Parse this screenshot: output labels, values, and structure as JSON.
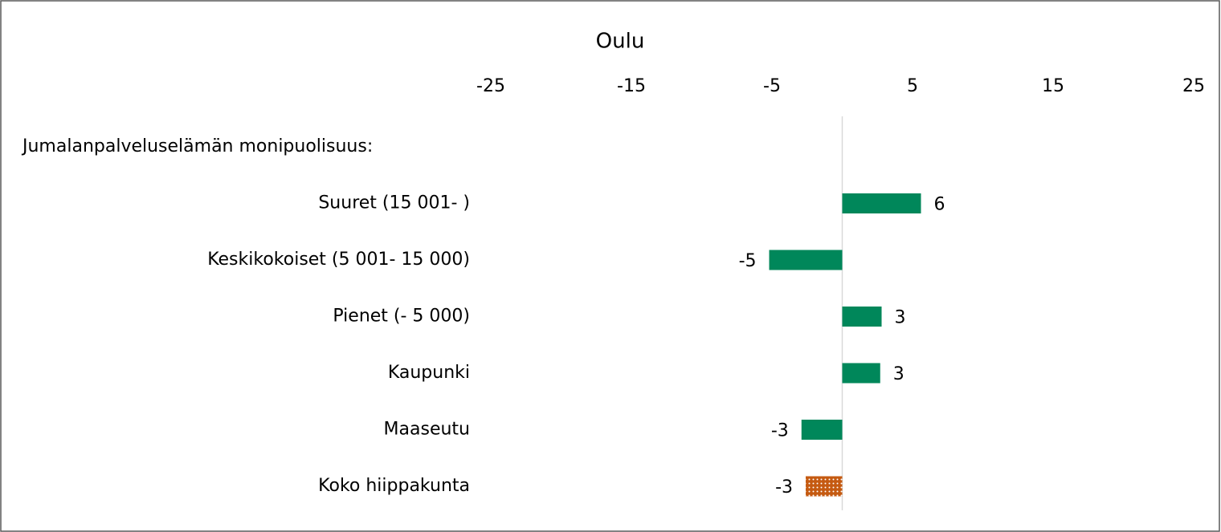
{
  "chart_data": {
    "type": "barh",
    "title": "Oulu",
    "categories": [
      "Jumalanpalveluselämän monipuolisuus:",
      "Suuret (15 001- )",
      "Keskikokoiset (5 001- 15 000)",
      "Pienet (- 5 000)",
      "Kaupunki",
      "Maaseutu",
      "Koko hiippakunta"
    ],
    "values": [
      null,
      5.6,
      -5.2,
      2.8,
      2.7,
      -2.9,
      -2.6
    ],
    "value_labels": [
      null,
      "6",
      "-5",
      "3",
      "3",
      "-3",
      "-3"
    ],
    "colors": [
      null,
      "#00875a",
      "#00875a",
      "#00875a",
      "#00875a",
      "#00875a",
      "#c55a11"
    ],
    "patterns": [
      null,
      null,
      null,
      null,
      null,
      null,
      "dots"
    ],
    "xlim": [
      -25,
      25
    ],
    "xticks": [
      -25,
      -15,
      -5,
      5,
      15,
      25
    ],
    "xaxis_position": "top"
  }
}
